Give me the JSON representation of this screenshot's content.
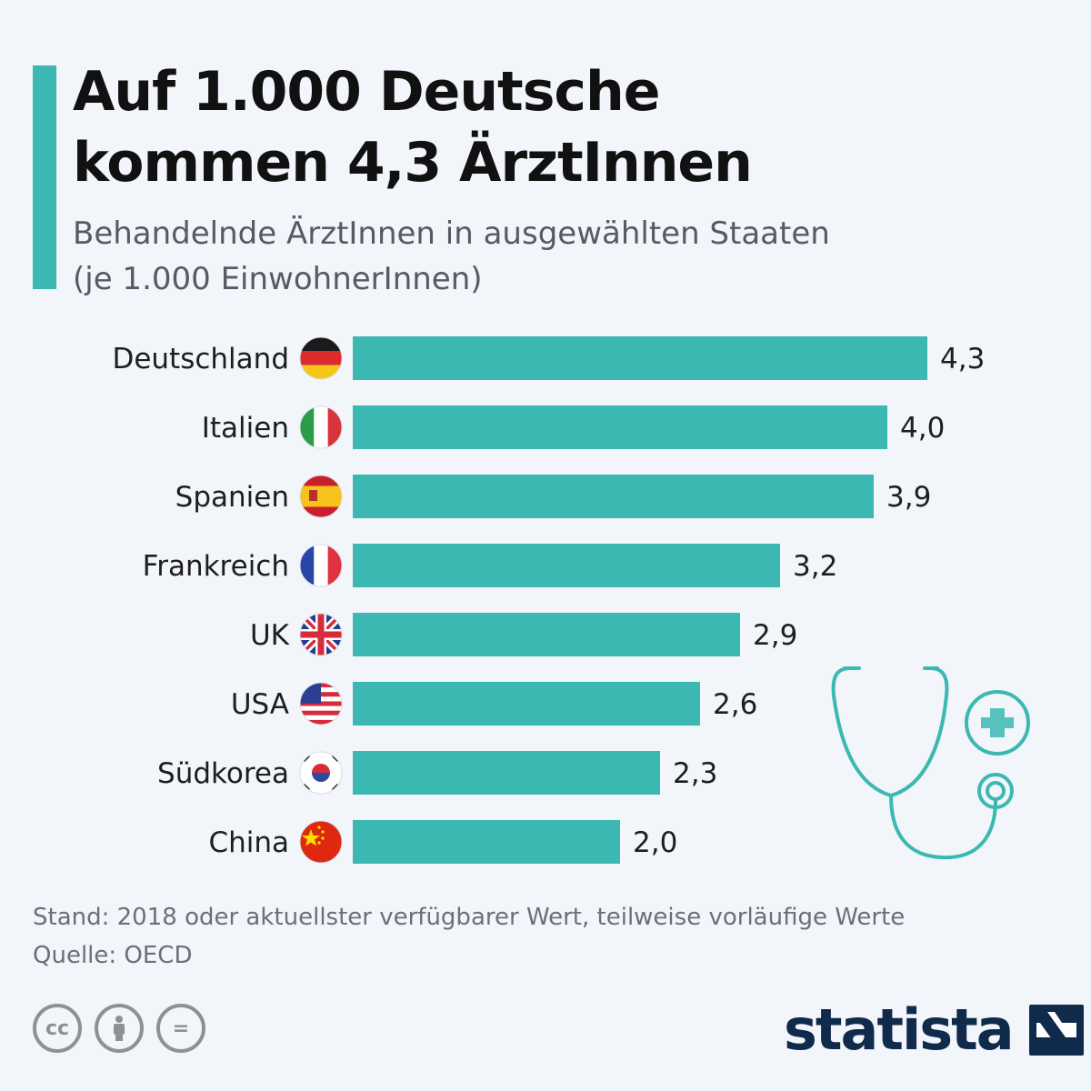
{
  "colors": {
    "accent": "#3cb8b2",
    "brand": "#0f2a4a",
    "background": "#f2f5fa"
  },
  "title": {
    "line1": "Auf 1.000 Deutsche",
    "line2": "kommen 4,3 ÄrztInnen"
  },
  "subtitle": {
    "line1": "Behandelnde ÄrztInnen in ausgewählten Staaten",
    "line2": "(je 1.000 EinwohnerInnen)"
  },
  "chart_data": {
    "type": "bar",
    "orientation": "horizontal",
    "categories": [
      "Deutschland",
      "Italien",
      "Spanien",
      "Frankreich",
      "UK",
      "USA",
      "Südkorea",
      "China"
    ],
    "values": [
      4.3,
      4.0,
      3.9,
      3.2,
      2.9,
      2.6,
      2.3,
      2.0
    ],
    "value_labels": [
      "4,3",
      "4,0",
      "3,9",
      "3,2",
      "2,9",
      "2,6",
      "2,3",
      "2,0"
    ],
    "flags": [
      "germany-flag-icon",
      "italy-flag-icon",
      "spain-flag-icon",
      "france-flag-icon",
      "uk-flag-icon",
      "usa-flag-icon",
      "south-korea-flag-icon",
      "china-flag-icon"
    ],
    "xlim": [
      0,
      4.3
    ],
    "grid": false,
    "legend": "none",
    "title": "Auf 1.000 Deutsche kommen 4,3 ÄrztInnen",
    "xlabel": "",
    "ylabel": ""
  },
  "footer": {
    "note": "Stand: 2018 oder aktuellster verfügbarer Wert, teilweise vorläufige Werte",
    "source": "Quelle: OECD"
  },
  "license": {
    "cc": "cc",
    "nd": "="
  },
  "brand": {
    "name": "statista"
  }
}
